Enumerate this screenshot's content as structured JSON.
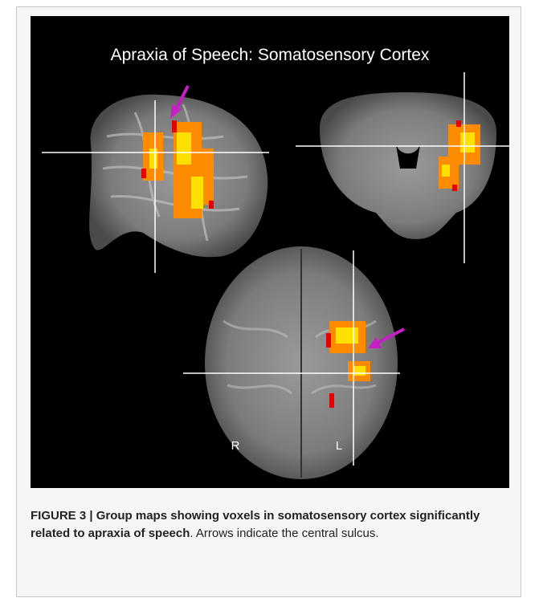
{
  "figure": {
    "title": "Apraxia of Speech: Somatosensory Cortex",
    "labels": {
      "right": "R",
      "left": "L"
    }
  },
  "caption": {
    "bold": "FIGURE 3 | Group maps showing voxels in somatosensory cortex significantly related to apraxia of speech",
    "text": ". Arrows indicate the central sulcus."
  }
}
